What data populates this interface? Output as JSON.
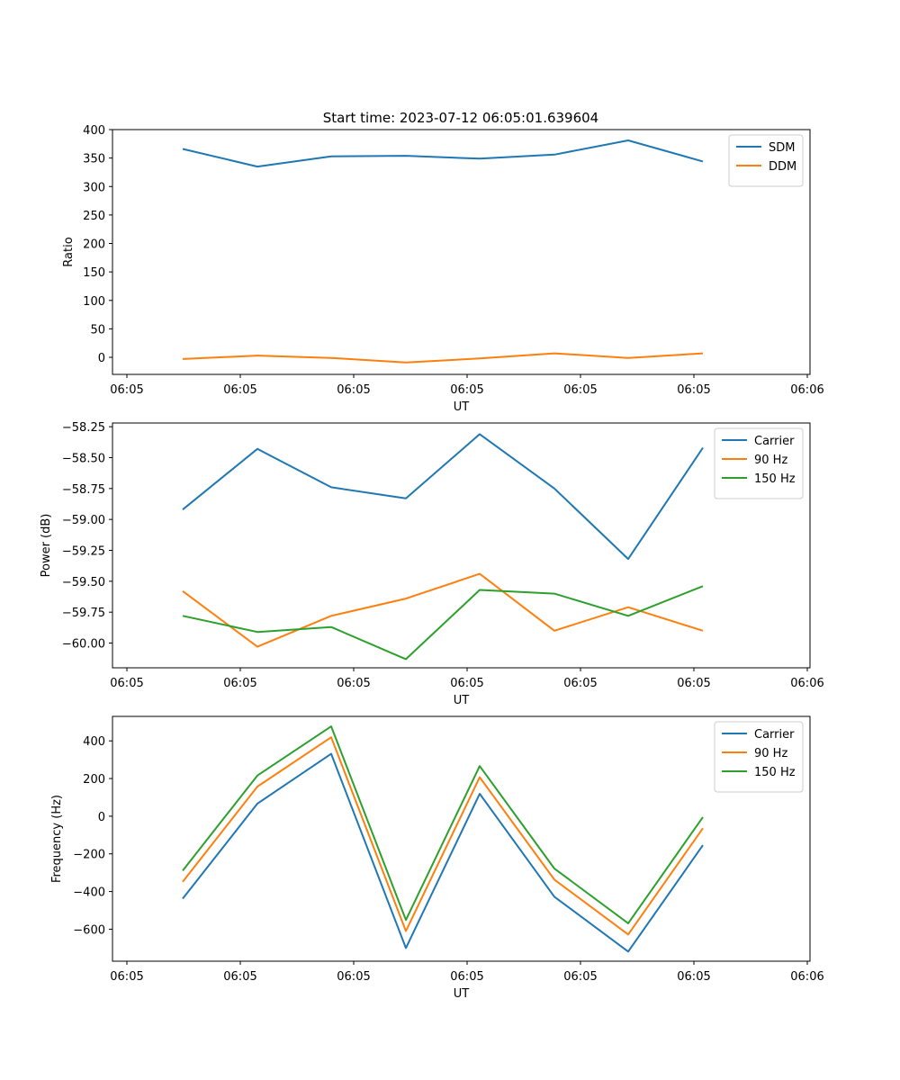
{
  "figure": {
    "title": "Start time: 2023-07-12 06:05:01.639604"
  },
  "chart_data": [
    {
      "type": "line",
      "title": "Start time: 2023-07-12 06:05:01.639604",
      "xlabel": "UT",
      "ylabel": "Ratio",
      "x_tick_labels": [
        "06:05",
        "06:05",
        "06:05",
        "06:05",
        "06:05",
        "06:05",
        "06:06"
      ],
      "y_ticks": [
        0,
        50,
        100,
        150,
        200,
        250,
        300,
        350,
        400
      ],
      "y_tick_labels": [
        "0",
        "50",
        "100",
        "150",
        "200",
        "250",
        "300",
        "350",
        "400"
      ],
      "ylim": [
        -30,
        400
      ],
      "legend_position": "top-right",
      "series": [
        {
          "name": "SDM",
          "color": "#1f77b4",
          "values": [
            366,
            335,
            353,
            354,
            349,
            356,
            381,
            344
          ]
        },
        {
          "name": "DDM",
          "color": "#ff7f0e",
          "values": [
            -3,
            3,
            -1,
            -9,
            -2,
            7,
            -1,
            7
          ]
        }
      ]
    },
    {
      "type": "line",
      "xlabel": "UT",
      "ylabel": "Power (dB)",
      "x_tick_labels": [
        "06:05",
        "06:05",
        "06:05",
        "06:05",
        "06:05",
        "06:05",
        "06:06"
      ],
      "y_ticks": [
        -60.0,
        -59.75,
        -59.5,
        -59.25,
        -59.0,
        -58.75,
        -58.5,
        -58.25
      ],
      "y_tick_labels": [
        "−60.00",
        "−59.75",
        "−59.50",
        "−59.25",
        "−59.00",
        "−58.75",
        "−58.50",
        "−58.25"
      ],
      "ylim": [
        -60.2,
        -58.22
      ],
      "legend_position": "top-right",
      "series": [
        {
          "name": "Carrier",
          "color": "#1f77b4",
          "values": [
            -58.92,
            -58.43,
            -58.74,
            -58.83,
            -58.31,
            -58.75,
            -59.32,
            -58.42
          ]
        },
        {
          "name": "90 Hz",
          "color": "#ff7f0e",
          "values": [
            -59.58,
            -60.03,
            -59.78,
            -59.64,
            -59.44,
            -59.9,
            -59.71,
            -59.9
          ]
        },
        {
          "name": "150 Hz",
          "color": "#2ca02c",
          "values": [
            -59.78,
            -59.91,
            -59.87,
            -60.13,
            -59.57,
            -59.6,
            -59.78,
            -59.54
          ]
        }
      ]
    },
    {
      "type": "line",
      "xlabel": "UT",
      "ylabel": "Frequency (Hz)",
      "x_tick_labels": [
        "06:05",
        "06:05",
        "06:05",
        "06:05",
        "06:05",
        "06:05",
        "06:06"
      ],
      "y_ticks": [
        -600,
        -400,
        -200,
        0,
        200,
        400
      ],
      "y_tick_labels": [
        "−600",
        "−400",
        "−200",
        "0",
        "200",
        "400"
      ],
      "ylim": [
        -770,
        530
      ],
      "legend_position": "top-right",
      "series": [
        {
          "name": "Carrier",
          "color": "#1f77b4",
          "values": [
            -438,
            67,
            331,
            -700,
            119,
            -428,
            -719,
            -154
          ]
        },
        {
          "name": "90 Hz",
          "color": "#ff7f0e",
          "values": [
            -348,
            157,
            419,
            -610,
            207,
            -337,
            -628,
            -64
          ]
        },
        {
          "name": "150 Hz",
          "color": "#2ca02c",
          "values": [
            -289,
            216,
            477,
            -551,
            266,
            -278,
            -569,
            -5
          ]
        }
      ]
    }
  ]
}
